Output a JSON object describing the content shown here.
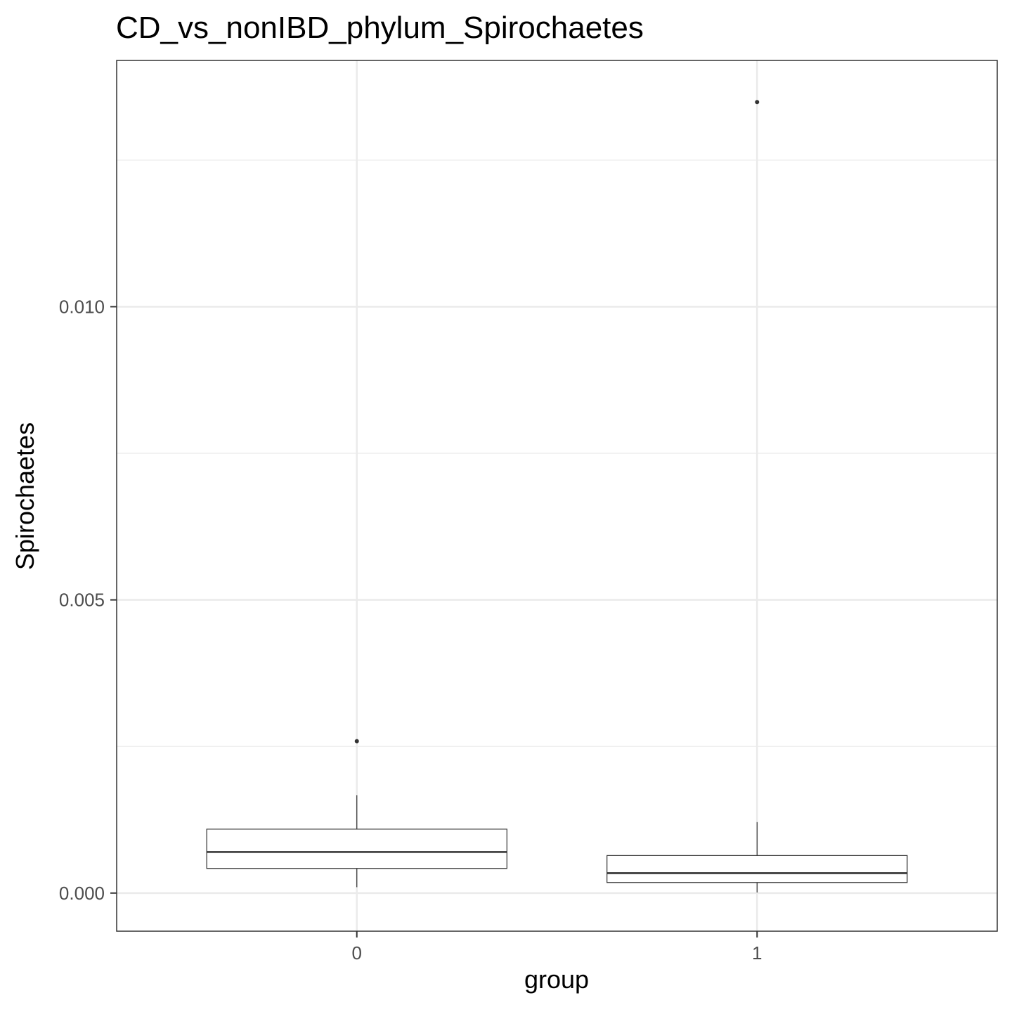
{
  "chart_data": {
    "type": "boxplot",
    "title": "CD_vs_nonIBD_phylum_Spirochaetes",
    "xlabel": "group",
    "ylabel": "Spirochaetes",
    "categories": [
      "0",
      "1"
    ],
    "ylim": [
      -0.00065,
      0.0142
    ],
    "yticks": [
      0.0,
      0.005,
      0.01
    ],
    "ytick_labels": [
      "0.000",
      "0.005",
      "0.010"
    ],
    "grid": true,
    "boxes": [
      {
        "group": "0",
        "whisker_low": 0.0001,
        "q1": 0.00042,
        "median": 0.0007,
        "q3": 0.00109,
        "whisker_high": 0.00167,
        "outliers": [
          0.00259
        ]
      },
      {
        "group": "1",
        "whisker_low": 1e-05,
        "q1": 0.00018,
        "median": 0.00034,
        "q3": 0.00064,
        "whisker_high": 0.00121,
        "outliers": [
          0.01349
        ]
      }
    ],
    "colors": {
      "box_fill": "#ffffff",
      "box_stroke": "#333333",
      "grid": "#ebebeb",
      "panel_border": "#333333"
    }
  }
}
